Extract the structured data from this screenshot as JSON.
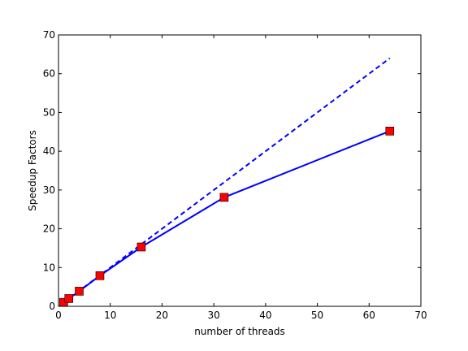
{
  "chart_data": {
    "type": "line",
    "title": "",
    "xlabel": "number of threads",
    "ylabel": "Speedup Factors",
    "xlim": [
      0,
      70
    ],
    "ylim": [
      0,
      70
    ],
    "xticks": [
      0,
      10,
      20,
      30,
      40,
      50,
      60,
      70
    ],
    "yticks": [
      0,
      10,
      20,
      30,
      40,
      50,
      60,
      70
    ],
    "grid": false,
    "legend": "none",
    "series": [
      {
        "style": "solid",
        "color": "#0000ff",
        "marker": "square",
        "marker_color": "#ff0000",
        "x": [
          1,
          2,
          4,
          8,
          16,
          32,
          64
        ],
        "values": [
          1,
          2,
          3.9,
          7.9,
          15.3,
          28.1,
          45.2
        ]
      },
      {
        "style": "dashed",
        "color": "#0000ff",
        "marker": "none",
        "x": [
          1,
          2,
          4,
          8,
          16,
          32,
          64
        ],
        "values": [
          1,
          2,
          4,
          8,
          16,
          32,
          64
        ]
      }
    ]
  }
}
